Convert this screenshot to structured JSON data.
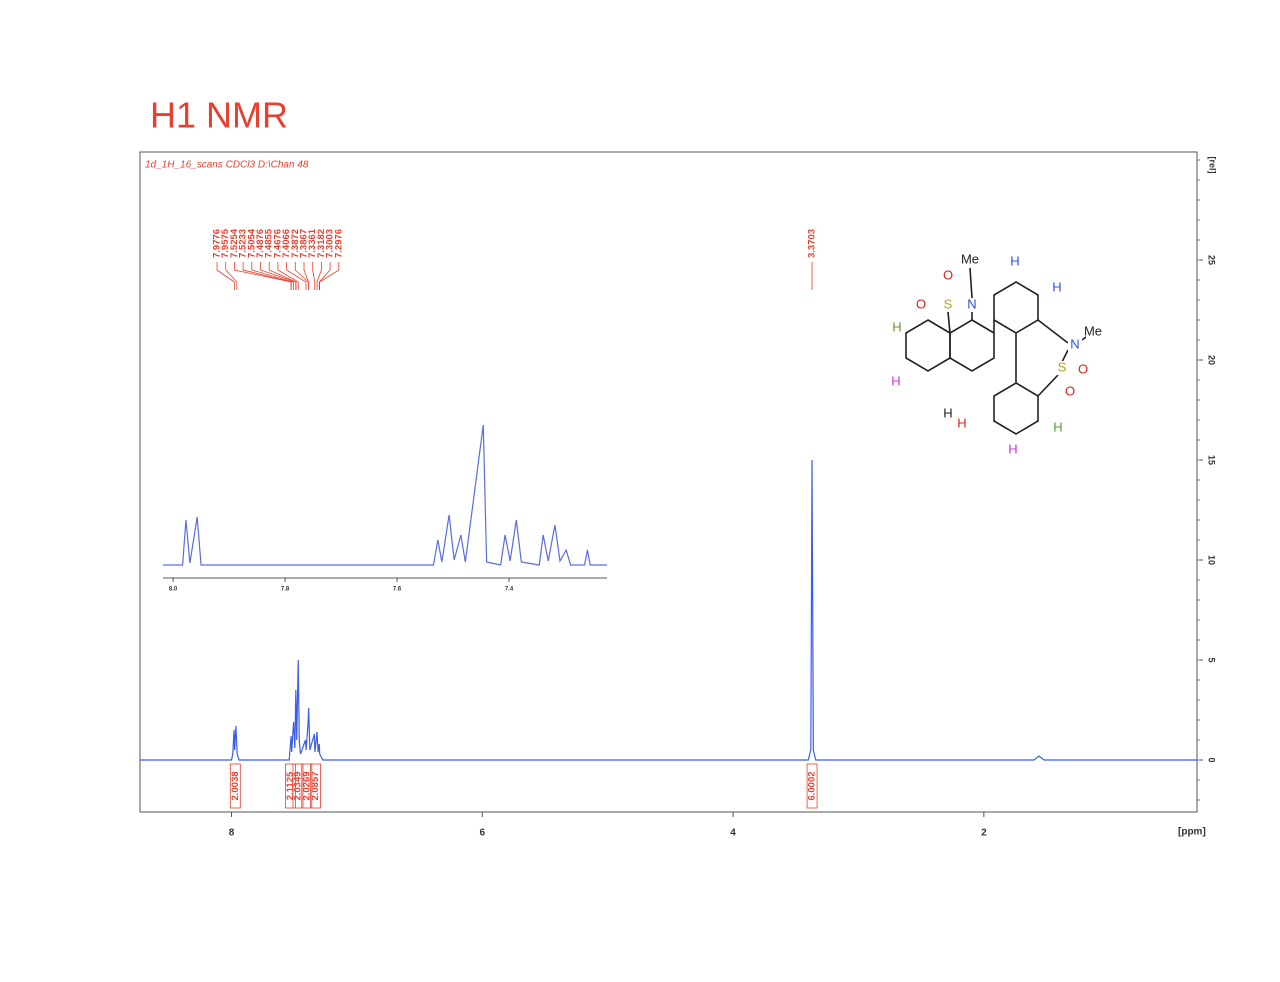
{
  "title": "H1 NMR",
  "chart_data": [
    {
      "type": "line",
      "subtitle": "1d_1H_16_scans CDCl3 D:\\Chan 48",
      "xlabel": "[ppm]",
      "ylabel": "[rel]",
      "xlim": [
        8.73,
        0.3
      ],
      "ylim": [
        -2.6,
        30.4
      ],
      "xticks": [
        8,
        6,
        4,
        2
      ],
      "yticks": [
        0,
        5,
        10,
        15,
        20,
        25
      ],
      "label_color": "#e8402e",
      "series": [
        {
          "color": "#3c5ee6",
          "x": [
            8.73,
            8.0,
            7.99,
            7.98,
            7.975,
            7.965,
            7.955,
            7.94,
            7.54,
            7.525,
            7.52,
            7.505,
            7.495,
            7.487,
            7.48,
            7.468,
            7.46,
            7.45,
            7.41,
            7.405,
            7.39,
            7.385,
            7.375,
            7.34,
            7.335,
            7.318,
            7.31,
            7.3,
            7.297,
            7.28,
            7.27,
            3.4,
            3.38,
            3.3703,
            3.36,
            3.34,
            1.6,
            1.56,
            1.52,
            0.3
          ],
          "values": [
            0,
            0,
            0.3,
            1.5,
            0.5,
            1.7,
            0.3,
            0,
            0,
            1.2,
            0.4,
            1.9,
            0.6,
            3.5,
            1.0,
            5.0,
            1.0,
            0.3,
            1.0,
            0.5,
            1.8,
            2.6,
            0.5,
            1.3,
            0.4,
            1.4,
            0.4,
            0.8,
            0.3,
            0.1,
            0,
            0,
            0.5,
            15,
            0.5,
            0,
            0,
            0.2,
            0,
            0
          ]
        }
      ],
      "peak_labels": [
        7.9776,
        7.9575,
        7.5254,
        7.5233,
        7.5054,
        7.4876,
        7.4855,
        7.4676,
        7.4066,
        7.3872,
        7.3867,
        7.3361,
        7.3182,
        7.3003,
        7.2976,
        3.3703
      ],
      "integrals": {
        "x": [
          7.97,
          7.53,
          7.47,
          7.4,
          7.33,
          3.37
        ],
        "values": [
          2.0038,
          2.1125,
          2.0349,
          2.0269,
          2.0857,
          6.0002
        ]
      }
    },
    {
      "type": "line",
      "xlim": [
        8.018,
        7.225
      ],
      "ylim": [
        0,
        150
      ],
      "xticks": [
        {
          "value": 8,
          "label": "8.0"
        },
        {
          "value": 7.8,
          "label": "7.8"
        },
        {
          "value": 7.6,
          "label": "7.6"
        },
        {
          "value": 7.4,
          "label": "7.4"
        }
      ],
      "series": [
        {
          "color": "#5a6de0",
          "x": [
            8.018,
            7.983,
            7.977,
            7.97,
            7.957,
            7.95,
            7.535,
            7.527,
            7.52,
            7.507,
            7.498,
            7.486,
            7.478,
            7.446,
            7.44,
            7.415,
            7.407,
            7.398,
            7.387,
            7.378,
            7.346,
            7.339,
            7.33,
            7.318,
            7.309,
            7.298,
            7.29,
            7.265,
            7.26,
            7.255,
            7.225
          ],
          "values": [
            0,
            0,
            45,
            2,
            48,
            0,
            0,
            25,
            3,
            50,
            5,
            30,
            3,
            140,
            3,
            0,
            30,
            4,
            45,
            3,
            0,
            30,
            4,
            40,
            4,
            15,
            0,
            0,
            15,
            0,
            0
          ]
        }
      ]
    }
  ],
  "molecule": {
    "atoms": [
      {
        "label": "Me",
        "color": "#222222"
      },
      {
        "label": "H",
        "color": "#2b4fe0"
      },
      {
        "label": "H",
        "color": "#2b4fe0"
      },
      {
        "label": "O",
        "color": "#e02020"
      },
      {
        "label": "S",
        "color": "#b0a020"
      },
      {
        "label": "O",
        "color": "#e02020"
      },
      {
        "label": "N",
        "color": "#2b4fe0"
      },
      {
        "label": "N",
        "color": "#2b4fe0"
      },
      {
        "label": "Me",
        "color": "#222222"
      },
      {
        "label": "S",
        "color": "#b0a020"
      },
      {
        "label": "O",
        "color": "#e02020"
      },
      {
        "label": "O",
        "color": "#e02020"
      },
      {
        "label": "H",
        "color": "#5a9a30"
      },
      {
        "label": "H",
        "color": "#d030d8"
      },
      {
        "label": "H",
        "color": "#222222"
      },
      {
        "label": "H",
        "color": "#e02020"
      },
      {
        "label": "H",
        "color": "#5a9a30"
      },
      {
        "label": "H",
        "color": "#d030d8"
      }
    ]
  }
}
